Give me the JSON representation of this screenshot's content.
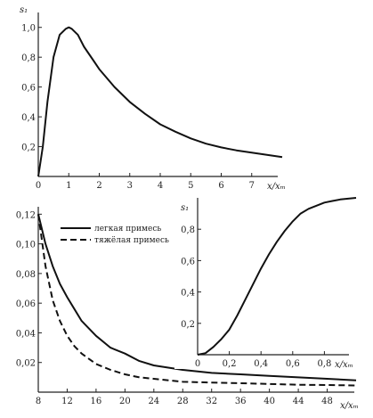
{
  "chart_data": [
    {
      "id": "top",
      "type": "line",
      "ylabel": "s₁",
      "xlabel": "x/xₘ",
      "xlim": [
        0,
        8
      ],
      "ylim": [
        0,
        1.1
      ],
      "xticks": [
        0,
        1,
        2,
        3,
        4,
        5,
        6,
        7
      ],
      "yticks": [
        0.2,
        0.4,
        0.6,
        0.8,
        1.0
      ],
      "xtick_labels": [
        "0",
        "1",
        "2",
        "3",
        "4",
        "5",
        "6",
        "7"
      ],
      "ytick_labels": [
        "0,2",
        "0,4",
        "0,6",
        "0,8",
        "1,0"
      ],
      "series": [
        {
          "x": [
            0,
            0.15,
            0.3,
            0.5,
            0.7,
            0.9,
            1.0,
            1.1,
            1.3,
            1.5,
            1.8,
            2.0,
            2.5,
            3.0,
            3.5,
            4.0,
            4.5,
            5.0,
            5.5,
            6.0,
            6.5,
            7.0,
            7.5,
            8.0
          ],
          "y": [
            0.0,
            0.2,
            0.5,
            0.8,
            0.95,
            0.99,
            1.0,
            0.99,
            0.95,
            0.87,
            0.78,
            0.72,
            0.6,
            0.5,
            0.42,
            0.35,
            0.3,
            0.255,
            0.22,
            0.195,
            0.175,
            0.16,
            0.145,
            0.13
          ]
        }
      ]
    },
    {
      "id": "bottom",
      "type": "line",
      "xlabel": "x/xₘ",
      "xlim": [
        8,
        52
      ],
      "ylim": [
        0,
        0.125
      ],
      "xticks": [
        8,
        12,
        16,
        20,
        24,
        28,
        32,
        36,
        40,
        44,
        48
      ],
      "xtick_labels": [
        "8",
        "12",
        "16",
        "20",
        "24",
        "28",
        "32",
        "36",
        "40",
        "44",
        "48"
      ],
      "yticks": [
        0.02,
        0.04,
        0.06,
        0.08,
        0.1,
        0.12
      ],
      "ytick_labels": [
        "0,02",
        "0,04",
        "0,06",
        "0,08",
        "0,10",
        "0,12"
      ],
      "series": [
        {
          "name": "легкая примесь",
          "style": "solid",
          "x": [
            8,
            9,
            10,
            11,
            12,
            13,
            14,
            16,
            18,
            20,
            22,
            24,
            28,
            32,
            36,
            40,
            44,
            48,
            52
          ],
          "y": [
            0.12,
            0.1,
            0.085,
            0.073,
            0.064,
            0.056,
            0.048,
            0.038,
            0.03,
            0.026,
            0.021,
            0.018,
            0.015,
            0.013,
            0.012,
            0.011,
            0.01,
            0.009,
            0.008
          ]
        },
        {
          "name": "тяжёлая примесь",
          "style": "dashed",
          "x": [
            8,
            9,
            10,
            11,
            12,
            13,
            14,
            16,
            18,
            20,
            22,
            24,
            28,
            32,
            36,
            40,
            44,
            48,
            52
          ],
          "y": [
            0.12,
            0.085,
            0.062,
            0.048,
            0.038,
            0.031,
            0.026,
            0.019,
            0.015,
            0.012,
            0.01,
            0.009,
            0.007,
            0.0065,
            0.006,
            0.0055,
            0.005,
            0.0048,
            0.0045
          ]
        }
      ]
    },
    {
      "id": "inset",
      "type": "line",
      "ylabel": "s₁",
      "xlabel": "x/xₘ",
      "xlim": [
        0,
        1.0
      ],
      "ylim": [
        0,
        1.0
      ],
      "xticks": [
        0,
        0.2,
        0.4,
        0.6,
        0.8
      ],
      "xtick_labels": [
        "0",
        "0,2",
        "0,4",
        "0,6",
        "0,8"
      ],
      "yticks": [
        0.2,
        0.4,
        0.6,
        0.8
      ],
      "ytick_labels": [
        "0,2",
        "0,4",
        "0,6",
        "0,8"
      ],
      "series": [
        {
          "x": [
            0,
            0.05,
            0.1,
            0.15,
            0.2,
            0.25,
            0.3,
            0.35,
            0.4,
            0.45,
            0.5,
            0.55,
            0.6,
            0.65,
            0.7,
            0.75,
            0.8,
            0.85,
            0.9,
            0.95,
            1.0
          ],
          "y": [
            0,
            0.01,
            0.05,
            0.1,
            0.16,
            0.25,
            0.35,
            0.45,
            0.55,
            0.64,
            0.72,
            0.79,
            0.85,
            0.9,
            0.93,
            0.95,
            0.97,
            0.98,
            0.99,
            0.995,
            1.0
          ]
        }
      ]
    }
  ]
}
